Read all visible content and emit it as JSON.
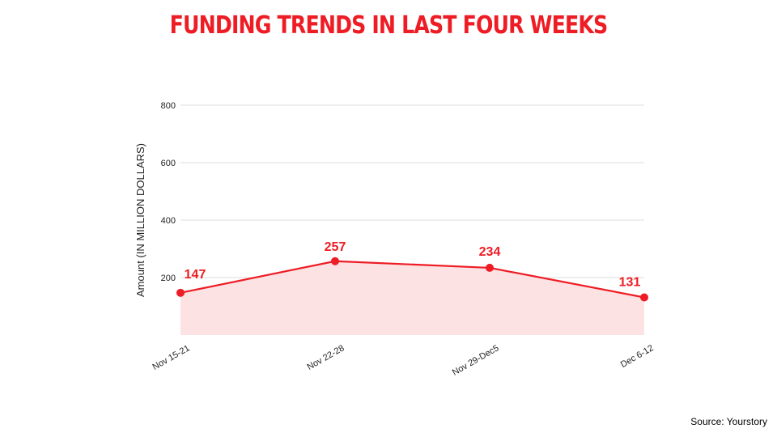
{
  "source": "Source: Yourstory",
  "colors": {
    "accent": "#ee1c24",
    "area_fill": "#fde2e4",
    "grid": "#dddddd"
  },
  "chart_data": {
    "type": "area",
    "title": "FUNDING TRENDS IN LAST FOUR WEEKS",
    "xlabel": "",
    "ylabel": "Amount (IN MILLION DOLLARS)",
    "categories": [
      "Nov 15-21",
      "Nov 22-28",
      "Nov 29-Dec5",
      "Dec 6-12"
    ],
    "values": [
      147,
      257,
      234,
      131
    ],
    "data_labels": [
      "147",
      "257",
      "234",
      "131"
    ],
    "yticks": [
      200,
      400,
      600,
      800
    ],
    "ytick_labels": [
      "200",
      "400",
      "600",
      "800"
    ],
    "ylim": [
      0,
      800
    ],
    "grid": true,
    "legend": "none"
  }
}
